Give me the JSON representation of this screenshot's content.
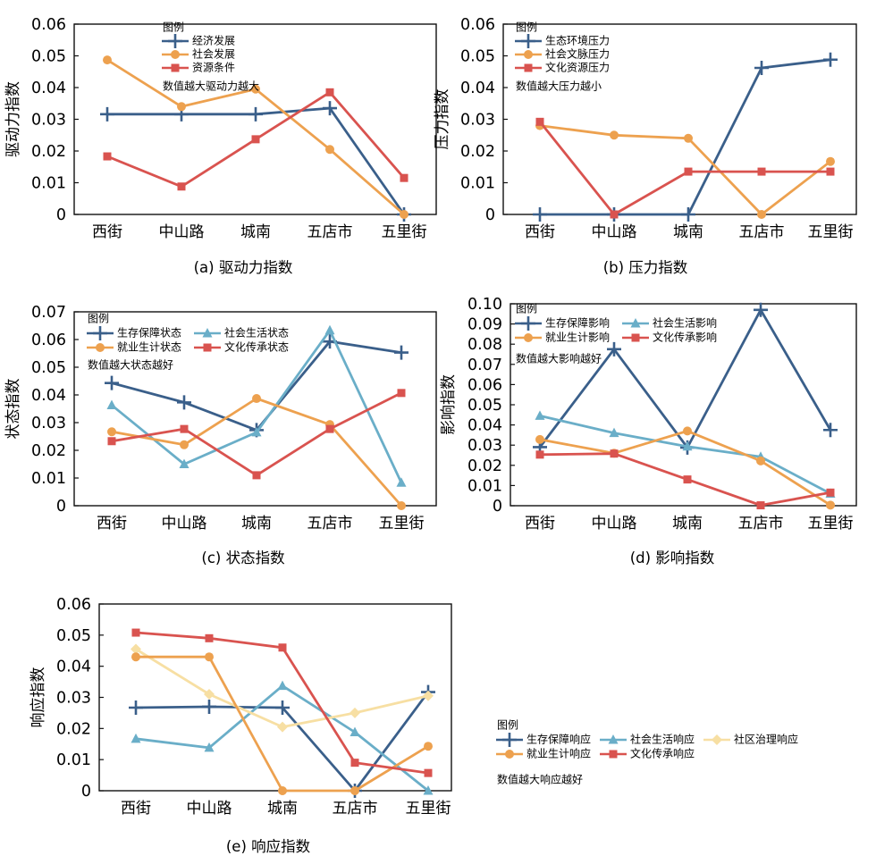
{
  "chart_data": [
    {
      "type": "line",
      "title": "",
      "caption": "(a) 驱动力指数",
      "xlabel": "",
      "ylabel": "驱动力指数",
      "categories": [
        "西街",
        "中山路",
        "城南",
        "五店市",
        "五里街"
      ],
      "ylim": [
        0,
        0.06
      ],
      "yticks": [
        "0",
        "0.01",
        "0.02",
        "0.03",
        "0.04",
        "0.05",
        "0.06"
      ],
      "grid": false,
      "legend_title": "图例",
      "legend_note": "数值越大驱动力越大",
      "legend_position": "top-center",
      "series": [
        {
          "name": "经济发展",
          "marker": "plus",
          "color": "#3a5f8a",
          "values": [
            0.0316,
            0.0316,
            0.0316,
            0.0335,
            0.0
          ]
        },
        {
          "name": "社会发展",
          "marker": "circle",
          "color": "#eda14f",
          "values": [
            0.0487,
            0.034,
            0.0395,
            0.0205,
            0.0
          ]
        },
        {
          "name": "资源条件",
          "marker": "square",
          "color": "#d9534f",
          "values": [
            0.0183,
            0.0088,
            0.0237,
            0.0385,
            0.0115
          ]
        }
      ]
    },
    {
      "type": "line",
      "title": "",
      "caption": "(b) 压力指数",
      "xlabel": "",
      "ylabel": "压力指数",
      "categories": [
        "西街",
        "中山路",
        "城南",
        "五店市",
        "五里街"
      ],
      "ylim": [
        0,
        0.06
      ],
      "yticks": [
        "0",
        "0.01",
        "0.02",
        "0.03",
        "0.04",
        "0.05",
        "0.06"
      ],
      "grid": false,
      "legend_title": "图例",
      "legend_note": "数值越大压力越小",
      "legend_position": "top-left",
      "series": [
        {
          "name": "生态环境压力",
          "marker": "plus",
          "color": "#3a5f8a",
          "values": [
            0.0,
            0.0,
            0.0,
            0.0462,
            0.0488
          ]
        },
        {
          "name": "社会文脉压力",
          "marker": "circle",
          "color": "#eda14f",
          "values": [
            0.028,
            0.025,
            0.024,
            0.0,
            0.0167
          ]
        },
        {
          "name": "文化资源压力",
          "marker": "square",
          "color": "#d9534f",
          "values": [
            0.0292,
            0.0,
            0.0135,
            0.0135,
            0.0135
          ]
        }
      ]
    },
    {
      "type": "line",
      "title": "",
      "caption": "(c) 状态指数",
      "xlabel": "",
      "ylabel": "状态指数",
      "categories": [
        "西街",
        "中山路",
        "城南",
        "五店市",
        "五里街"
      ],
      "ylim": [
        0,
        0.07
      ],
      "yticks": [
        "0",
        "0.01",
        "0.02",
        "0.03",
        "0.04",
        "0.05",
        "0.06",
        "0.07"
      ],
      "grid": false,
      "legend_title": "图例",
      "legend_note": "数值越大状态越好",
      "legend_position": "top-left",
      "series": [
        {
          "name": "生存保障状态",
          "marker": "plus",
          "color": "#3a5f8a",
          "values": [
            0.0443,
            0.0373,
            0.0273,
            0.0593,
            0.0553
          ]
        },
        {
          "name": "社会生活状态",
          "marker": "triangle",
          "color": "#6aaec8",
          "values": [
            0.0363,
            0.015,
            0.0265,
            0.0633,
            0.0083
          ]
        },
        {
          "name": "就业生计状态",
          "marker": "circle",
          "color": "#eda14f",
          "values": [
            0.0267,
            0.022,
            0.0387,
            0.0293,
            0.0
          ]
        },
        {
          "name": "文化传承状态",
          "marker": "square",
          "color": "#d9534f",
          "values": [
            0.0233,
            0.0277,
            0.011,
            0.0277,
            0.0407
          ]
        }
      ]
    },
    {
      "type": "line",
      "title": "",
      "caption": "(d) 影响指数",
      "xlabel": "",
      "ylabel": "影响指数",
      "categories": [
        "西街",
        "中山路",
        "城南",
        "五店市",
        "五里街"
      ],
      "ylim": [
        0,
        0.1
      ],
      "yticks": [
        "0",
        "0.01",
        "0.02",
        "0.03",
        "0.04",
        "0.05",
        "0.06",
        "0.07",
        "0.08",
        "0.09",
        "0.10"
      ],
      "grid": false,
      "legend_title": "图例",
      "legend_note": "数值越大影响越好",
      "legend_position": "top-left",
      "series": [
        {
          "name": "生存保障影响",
          "marker": "plus",
          "color": "#3a5f8a",
          "values": [
            0.029,
            0.0775,
            0.0288,
            0.097,
            0.0375
          ]
        },
        {
          "name": "社会生活影响",
          "marker": "triangle",
          "color": "#6aaec8",
          "values": [
            0.0445,
            0.036,
            0.0293,
            0.0242,
            0.006
          ]
        },
        {
          "name": "就业生计影响",
          "marker": "circle",
          "color": "#eda14f",
          "values": [
            0.0328,
            0.026,
            0.037,
            0.0222,
            0.0003
          ]
        },
        {
          "name": "文化传承影响",
          "marker": "square",
          "color": "#d9534f",
          "values": [
            0.0253,
            0.0258,
            0.013,
            0.0002,
            0.0065
          ]
        }
      ]
    },
    {
      "type": "line",
      "title": "",
      "caption": "(e) 响应指数",
      "xlabel": "",
      "ylabel": "响应指数",
      "categories": [
        "西街",
        "中山路",
        "城南",
        "五店市",
        "五里街"
      ],
      "ylim": [
        0,
        0.06
      ],
      "yticks": [
        "0",
        "0.01",
        "0.02",
        "0.03",
        "0.04",
        "0.05",
        "0.06"
      ],
      "grid": false,
      "legend_title": "图例",
      "legend_note": "数值越大响应越好",
      "legend_position": "outside-right",
      "series": [
        {
          "name": "生存保障响应",
          "marker": "plus",
          "color": "#3a5f8a",
          "values": [
            0.0267,
            0.027,
            0.0267,
            0.0,
            0.0317
          ]
        },
        {
          "name": "社会生活响应",
          "marker": "triangle",
          "color": "#6aaec8",
          "values": [
            0.0167,
            0.0138,
            0.0337,
            0.0188,
            0.0
          ]
        },
        {
          "name": "社区治理响应",
          "marker": "diamond",
          "color": "#f7dfa3",
          "values": [
            0.0455,
            0.031,
            0.0205,
            0.025,
            0.0305
          ]
        },
        {
          "name": "就业生计响应",
          "marker": "circle",
          "color": "#eda14f",
          "values": [
            0.043,
            0.043,
            0.0,
            0.0,
            0.0143
          ]
        },
        {
          "name": "文化传承响应",
          "marker": "square",
          "color": "#d9534f",
          "values": [
            0.0508,
            0.049,
            0.046,
            0.009,
            0.0057
          ]
        }
      ]
    }
  ]
}
